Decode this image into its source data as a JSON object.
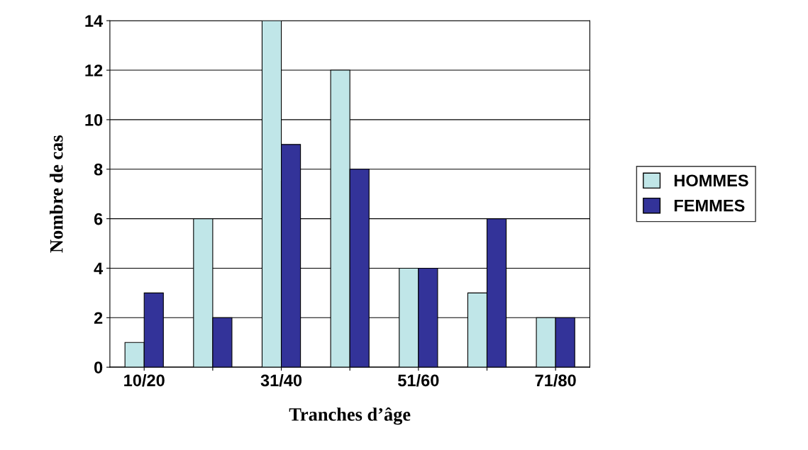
{
  "chart_data": {
    "type": "bar",
    "xlabel": "Tranches d’âge",
    "ylabel": "Nombre de cas",
    "categories": [
      "10/20",
      null,
      "31/40",
      null,
      "51/60",
      null,
      "71/80"
    ],
    "series": [
      {
        "name": "HOMMES",
        "color": "#c0e6e8",
        "values": [
          1,
          6,
          14,
          12,
          4,
          3,
          2
        ]
      },
      {
        "name": "FEMMES",
        "color": "#333399",
        "values": [
          3,
          2,
          9,
          8,
          4,
          6,
          2
        ]
      }
    ],
    "ylim": [
      0,
      14
    ],
    "yticks": [
      0,
      2,
      4,
      6,
      8,
      10,
      12,
      14
    ],
    "grid": "y",
    "legend": "right"
  }
}
